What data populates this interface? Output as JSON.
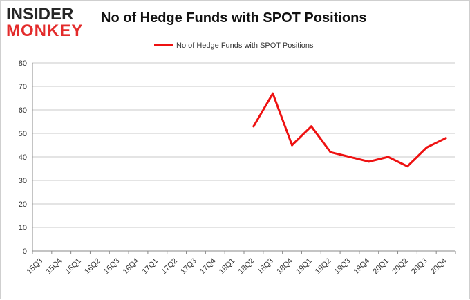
{
  "brand": {
    "logo_top": "INSIDER",
    "logo_bottom": "MONKEY",
    "accent_color": "#e32b2b"
  },
  "chart_data": {
    "type": "line",
    "title": "No of Hedge Funds with SPOT Positions",
    "xlabel": "",
    "ylabel": "",
    "ylim": [
      0,
      80
    ],
    "yticks": [
      0,
      10,
      20,
      30,
      40,
      50,
      60,
      70,
      80
    ],
    "grid": true,
    "legend_position": "top",
    "categories": [
      "15Q3",
      "15Q4",
      "16Q1",
      "16Q2",
      "16Q3",
      "16Q4",
      "17Q1",
      "17Q2",
      "17Q3",
      "17Q4",
      "18Q1",
      "18Q2",
      "18Q3",
      "18Q4",
      "19Q1",
      "19Q2",
      "19Q3",
      "19Q4",
      "20Q1",
      "20Q2",
      "20Q3",
      "20Q4"
    ],
    "series": [
      {
        "name": "No of Hedge Funds with SPOT Positions",
        "color": "#ee1111",
        "values": [
          null,
          null,
          null,
          null,
          null,
          null,
          null,
          null,
          null,
          null,
          null,
          53,
          67,
          45,
          53,
          42,
          40,
          38,
          40,
          36,
          44,
          48
        ]
      }
    ]
  }
}
